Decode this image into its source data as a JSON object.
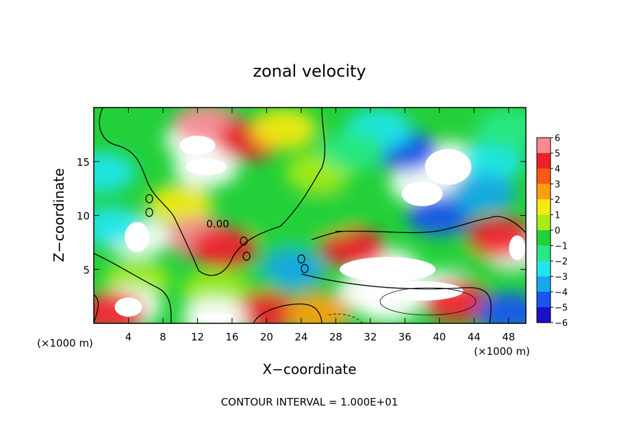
{
  "chart_data": {
    "type": "heatmap",
    "title": "zonal velocity",
    "xlabel": "X−coordinate",
    "ylabel": "Z−coordinate",
    "x_unit_left": "(×1000 m)",
    "x_unit_right": "(×1000 m)",
    "footer": "CONTOUR INTERVAL = 1.000E+01",
    "xlim": [
      0,
      50
    ],
    "ylim": [
      0,
      20
    ],
    "x_ticks": [
      4,
      8,
      12,
      16,
      20,
      24,
      28,
      32,
      36,
      40,
      44,
      48
    ],
    "y_ticks": [
      5,
      10,
      15
    ],
    "contour_label": "0.00",
    "colorbar": {
      "min": -6,
      "max": 6,
      "ticks": [
        "6",
        "5",
        "4",
        "3",
        "2",
        "1",
        "0",
        "−1",
        "−2",
        "−3",
        "−4",
        "−5",
        "−6"
      ]
    },
    "field_features": [
      {
        "x": 12,
        "y": 17,
        "value": 7
      },
      {
        "x": 13,
        "y": 14.5,
        "value": 7
      },
      {
        "x": 13,
        "y": 18.5,
        "value": 5
      },
      {
        "x": 18,
        "y": 17,
        "value": 4
      },
      {
        "x": 22,
        "y": 18,
        "value": 1.5
      },
      {
        "x": 26,
        "y": 14,
        "value": 0.2
      },
      {
        "x": 10,
        "y": 11,
        "value": 1.5
      },
      {
        "x": 12,
        "y": 8,
        "value": 5
      },
      {
        "x": 15,
        "y": 7,
        "value": 4
      },
      {
        "x": 5,
        "y": 8,
        "value": -7
      },
      {
        "x": 2,
        "y": 9,
        "value": -3
      },
      {
        "x": 1,
        "y": 14,
        "value": -3
      },
      {
        "x": 5,
        "y": 4,
        "value": 0.5
      },
      {
        "x": 4,
        "y": 1.5,
        "value": 7
      },
      {
        "x": 2,
        "y": 1,
        "value": 4
      },
      {
        "x": 34,
        "y": 5,
        "value": 7
      },
      {
        "x": 32,
        "y": 3,
        "value": 7
      },
      {
        "x": 30,
        "y": 7,
        "value": 4
      },
      {
        "x": 40,
        "y": 3,
        "value": 7
      },
      {
        "x": 34,
        "y": 2,
        "value": 7
      },
      {
        "x": 42,
        "y": 2,
        "value": 4
      },
      {
        "x": 46,
        "y": 6,
        "value": -1
      },
      {
        "x": 49,
        "y": 7,
        "value": 7
      },
      {
        "x": 47,
        "y": 8,
        "value": 4
      },
      {
        "x": 48,
        "y": 1,
        "value": -5
      },
      {
        "x": 38,
        "y": 13,
        "value": -7
      },
      {
        "x": 41,
        "y": 15,
        "value": -7
      },
      {
        "x": 40,
        "y": 10,
        "value": -5
      },
      {
        "x": 36,
        "y": 16,
        "value": -5
      },
      {
        "x": 33,
        "y": 18,
        "value": -3
      },
      {
        "x": 30,
        "y": 16,
        "value": -1.5
      },
      {
        "x": 46,
        "y": 15,
        "value": -3
      },
      {
        "x": 45,
        "y": 12,
        "value": -4
      },
      {
        "x": 48,
        "y": 18,
        "value": -2
      },
      {
        "x": 23,
        "y": 5,
        "value": -4
      },
      {
        "x": 22,
        "y": 9,
        "value": -1
      },
      {
        "x": 27,
        "y": 10,
        "value": -0.5
      },
      {
        "x": 18,
        "y": 3,
        "value": -0.5
      },
      {
        "x": 14,
        "y": 3,
        "value": 0.5
      },
      {
        "x": 20,
        "y": 1,
        "value": 4
      },
      {
        "x": 14,
        "y": 0.5,
        "value": 7
      },
      {
        "x": 26,
        "y": 1,
        "value": 2
      }
    ]
  }
}
